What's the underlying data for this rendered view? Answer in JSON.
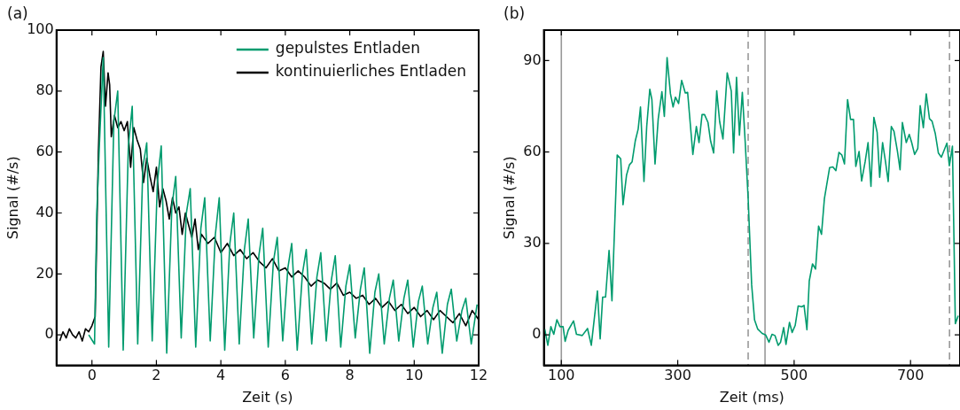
{
  "chart_data": [
    {
      "type": "line",
      "title": "(a)",
      "xlabel": "Zeit (s)",
      "ylabel": "Signal (#/s)",
      "xlim": [
        -1.1,
        12
      ],
      "xticks": [
        0,
        2,
        4,
        6,
        8,
        10,
        12
      ],
      "ylim": [
        -10,
        100
      ],
      "yticks": [
        0,
        20,
        40,
        60,
        80,
        100
      ],
      "legend": "top right",
      "series": [
        {
          "name": "gepulstes Entladen",
          "color": "#009b6e",
          "x": [
            -0.1,
            0.08,
            0.15,
            0.23,
            0.35,
            0.52,
            0.68,
            0.8,
            0.97,
            1.13,
            1.25,
            1.42,
            1.58,
            1.7,
            1.87,
            2.03,
            2.15,
            2.32,
            2.48,
            2.6,
            2.77,
            2.93,
            3.05,
            3.22,
            3.38,
            3.5,
            3.67,
            3.83,
            3.95,
            4.12,
            4.28,
            4.4,
            4.57,
            4.73,
            4.85,
            5.02,
            5.18,
            5.3,
            5.47,
            5.63,
            5.75,
            5.92,
            6.08,
            6.2,
            6.37,
            6.53,
            6.65,
            6.82,
            6.98,
            7.1,
            7.27,
            7.43,
            7.55,
            7.72,
            7.88,
            8.0,
            8.17,
            8.33,
            8.45,
            8.62,
            8.78,
            8.9,
            9.07,
            9.23,
            9.35,
            9.52,
            9.68,
            9.8,
            9.97,
            10.13,
            10.25,
            10.42,
            10.58,
            10.7,
            10.87,
            11.03,
            11.15,
            11.32,
            11.48,
            11.6,
            11.77,
            11.95
          ],
          "values": [
            0,
            -3,
            40,
            62,
            91,
            -4,
            70,
            80,
            -5,
            62,
            75,
            -3,
            55,
            63,
            -2,
            50,
            62,
            -6,
            42,
            52,
            -1,
            40,
            48,
            -4,
            35,
            45,
            -2,
            33,
            45,
            -5,
            30,
            40,
            -3,
            28,
            38,
            -1,
            26,
            35,
            -4,
            24,
            32,
            -2,
            22,
            30,
            -5,
            20,
            28,
            -3,
            19,
            27,
            -2,
            18,
            26,
            -4,
            16,
            23,
            -1,
            15,
            22,
            -6,
            14,
            20,
            -3,
            12,
            18,
            -2,
            12,
            18,
            -4,
            11,
            16,
            -3,
            9,
            14,
            -6,
            10,
            15,
            -2,
            8,
            12,
            -3,
            10
          ]
        },
        {
          "name": "kontinuierliches Entladen",
          "color": "#000000",
          "x": [
            -1.0,
            -0.9,
            -0.8,
            -0.7,
            -0.6,
            -0.5,
            -0.4,
            -0.3,
            -0.2,
            -0.1,
            0.0,
            0.1,
            0.2,
            0.28,
            0.35,
            0.42,
            0.5,
            0.55,
            0.6,
            0.7,
            0.8,
            0.9,
            1.0,
            1.1,
            1.2,
            1.3,
            1.4,
            1.5,
            1.6,
            1.7,
            1.8,
            1.9,
            2.0,
            2.1,
            2.2,
            2.3,
            2.4,
            2.5,
            2.6,
            2.7,
            2.8,
            2.9,
            3.0,
            3.1,
            3.2,
            3.3,
            3.4,
            3.6,
            3.8,
            4.0,
            4.2,
            4.4,
            4.6,
            4.8,
            5.0,
            5.2,
            5.4,
            5.6,
            5.8,
            6.0,
            6.2,
            6.4,
            6.6,
            6.8,
            7.0,
            7.2,
            7.4,
            7.6,
            7.8,
            8.0,
            8.2,
            8.4,
            8.6,
            8.8,
            9.0,
            9.2,
            9.4,
            9.6,
            9.8,
            10.0,
            10.2,
            10.4,
            10.6,
            10.8,
            11.0,
            11.2,
            11.4,
            11.6,
            11.8,
            12.0
          ],
          "values": [
            -2,
            1,
            -1,
            2,
            0,
            -1,
            1,
            -2,
            2,
            1,
            3,
            6,
            60,
            88,
            93,
            75,
            86,
            82,
            65,
            72,
            68,
            70,
            67,
            70,
            55,
            68,
            64,
            61,
            50,
            58,
            52,
            47,
            55,
            42,
            48,
            44,
            38,
            45,
            40,
            42,
            33,
            40,
            36,
            32,
            38,
            28,
            33,
            30,
            32,
            27,
            30,
            26,
            28,
            25,
            27,
            24,
            22,
            25,
            21,
            22,
            19,
            21,
            19,
            16,
            18,
            17,
            15,
            17,
            13,
            14,
            12,
            13,
            10,
            12,
            9,
            11,
            8,
            10,
            7,
            9,
            6,
            8,
            5,
            8,
            6,
            4,
            7,
            3,
            8,
            5
          ]
        }
      ]
    },
    {
      "type": "line",
      "title": "(b)",
      "xlabel": "Zeit (ms)",
      "ylabel": "Signal (#/s)",
      "xlim": [
        70,
        785
      ],
      "xticks": [
        100,
        300,
        500,
        700
      ],
      "ylim": [
        -10,
        100
      ],
      "yticks": [
        0,
        30,
        60,
        90
      ],
      "ref_lines": [
        {
          "axis": "x",
          "value": 100,
          "color": "#999999",
          "line_style": "solid"
        },
        {
          "axis": "x",
          "value": 421,
          "color": "#999999",
          "line_style": "dashed"
        },
        {
          "axis": "x",
          "value": 450,
          "color": "#999999",
          "line_style": "solid"
        },
        {
          "axis": "x",
          "value": 767,
          "color": "#999999",
          "line_style": "dashed"
        }
      ],
      "series": [
        {
          "color": "#009b6e",
          "x": [
            71.5,
            76.8,
            82,
            87,
            92.4,
            97.6,
            103,
            106.5,
            111.8,
            121,
            126,
            136,
            145,
            151.5,
            162,
            166.7,
            171,
            176,
            182,
            187,
            196,
            202,
            206,
            212,
            217,
            221.6,
            227,
            232,
            236,
            242,
            246.7,
            252,
            255.6,
            261,
            266.5,
            272.8,
            277,
            281.7,
            287.5,
            292,
            296,
            301.5,
            306.7,
            313,
            317,
            326,
            332,
            336.6,
            341.8,
            346,
            352,
            356.5,
            361.7,
            367,
            372,
            377.7,
            385,
            392,
            396,
            401,
            406,
            411,
            416,
            421,
            427,
            432,
            437.5,
            445,
            451,
            456.8,
            462,
            467,
            472.6,
            476.7,
            482,
            486,
            492,
            496.6,
            501.8,
            507,
            513,
            517,
            522,
            526,
            531.6,
            536.8,
            542,
            547,
            552,
            561,
            566.6,
            571.8,
            577,
            582,
            586.5,
            591.8,
            597,
            602,
            606,
            611.6,
            616,
            622,
            627,
            632,
            637,
            642.6,
            647,
            652,
            657,
            661.6,
            667,
            671.6,
            677.5,
            682,
            686,
            692.7,
            697.8,
            702,
            707,
            712.5,
            716.6,
            722,
            727,
            732.6,
            737,
            742.6,
            747.8,
            753,
            762.5,
            766.7,
            772,
            777,
            782
          ],
          "values": [
            1.9,
            -3.4,
            2.7,
            0.2,
            5,
            2.7,
            2.7,
            -2.1,
            1.5,
            4.6,
            0.2,
            -0.2,
            2.1,
            -3.4,
            14.4,
            -1.3,
            12.4,
            12.4,
            27.7,
            11.2,
            59,
            57.8,
            42.7,
            52.4,
            55.8,
            56.8,
            63.6,
            67.5,
            74.8,
            50.3,
            68.4,
            80.6,
            77.2,
            56.1,
            70.9,
            79.8,
            71.7,
            91,
            79.1,
            74.8,
            78,
            75.9,
            83.5,
            79.4,
            79.6,
            59.2,
            68.4,
            63.1,
            72.3,
            72.3,
            69.7,
            63.6,
            59.7,
            80.1,
            70,
            64.3,
            86,
            80,
            59.7,
            84.5,
            65.5,
            79.6,
            63,
            44.7,
            16.5,
            4.9,
            1.9,
            0.5,
            0,
            -2.4,
            0.2,
            -0.2,
            -3.4,
            -2.4,
            2.4,
            -3.1,
            4.1,
            0.8,
            3.1,
            9.5,
            9.2,
            9.7,
            1.7,
            17.7,
            23.3,
            21.6,
            35.7,
            33,
            44.7,
            54.9,
            55.1,
            53.9,
            59.9,
            59,
            56.1,
            77.2,
            70.7,
            70.7,
            55.3,
            60.2,
            50.5,
            56.8,
            63.1,
            48.7,
            71.4,
            66.5,
            51.7,
            63.1,
            56.8,
            50.3,
            68.4,
            66.8,
            60.2,
            54.2,
            69.7,
            63.1,
            65.8,
            63.1,
            59.2,
            61.2,
            75.2,
            68,
            79.1,
            70.9,
            70.1,
            66,
            59.7,
            58.3,
            62.9,
            55.5,
            61.9,
            3.7,
            6.3
          ]
        }
      ]
    }
  ]
}
